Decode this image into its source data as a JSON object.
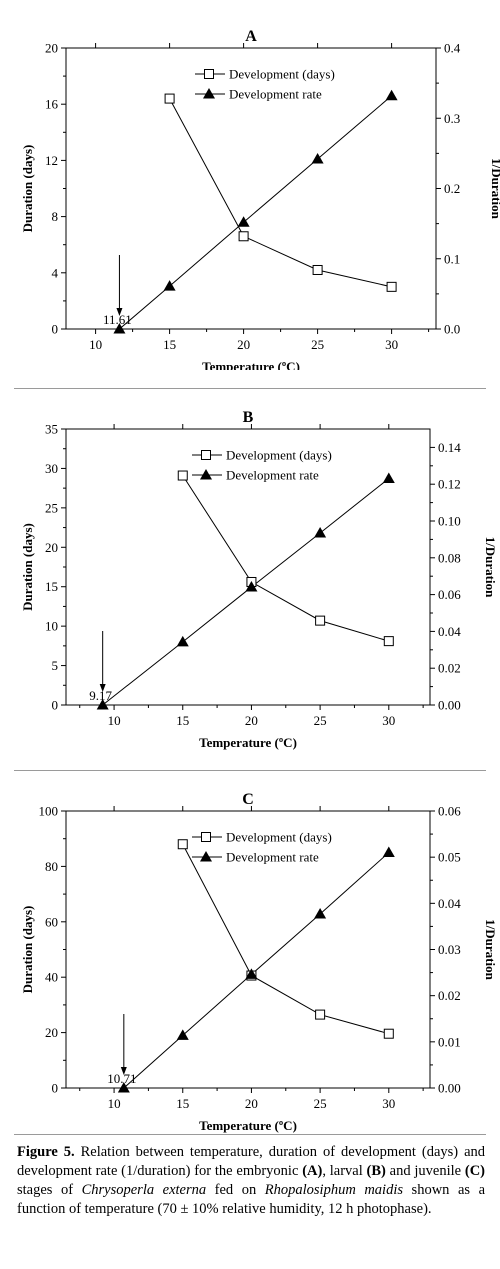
{
  "chart_data": [
    {
      "type": "line",
      "title": "A",
      "xlabel": "Temperature (ºC)",
      "ylabel": "Duration (days)",
      "y2label": "1/Duration",
      "xlim": [
        8,
        33
      ],
      "xticks": [
        10,
        15,
        20,
        25,
        30
      ],
      "ylim": [
        0,
        20
      ],
      "yticks": [
        0,
        4,
        8,
        12,
        16,
        20
      ],
      "ytick_labels": [
        "0",
        "4",
        "8",
        "12",
        "16",
        "20"
      ],
      "y2lim": [
        0,
        0.4
      ],
      "y2ticks": [
        0,
        0.1,
        0.2,
        0.3,
        0.4
      ],
      "y2tick_labels": [
        "0.0",
        "0.1",
        "0.2",
        "0.3",
        "0.4"
      ],
      "series": [
        {
          "name": "Development (days)",
          "axis": "left",
          "marker": "open-square",
          "x": [
            15,
            20,
            25,
            30
          ],
          "y": [
            16.4,
            6.6,
            4.2,
            3.0
          ]
        },
        {
          "name": "Development rate",
          "axis": "right",
          "marker": "filled-triangle",
          "x": [
            11.61,
            15,
            20,
            25,
            30
          ],
          "y": [
            0.0,
            0.061,
            0.152,
            0.242,
            0.332
          ]
        }
      ],
      "annotation": {
        "text": "11.61",
        "x": 11.61
      }
    },
    {
      "type": "line",
      "title": "B",
      "xlabel": "Temperature (ºC)",
      "ylabel": "Duration (days)",
      "y2label": "1/Duration",
      "xlim": [
        6.5,
        33
      ],
      "xticks": [
        10,
        15,
        20,
        25,
        30
      ],
      "ylim": [
        0,
        35
      ],
      "yticks": [
        0,
        5,
        10,
        15,
        20,
        25,
        30,
        35
      ],
      "ytick_labels": [
        "0",
        "5",
        "10",
        "15",
        "20",
        "25",
        "30",
        "35"
      ],
      "y2lim": [
        0,
        0.15
      ],
      "y2ticks": [
        0,
        0.02,
        0.04,
        0.06,
        0.08,
        0.1,
        0.12,
        0.14
      ],
      "y2tick_labels": [
        "0.00",
        "0.02",
        "0.04",
        "0.06",
        "0.08",
        "0.10",
        "0.12",
        "0.14"
      ],
      "series": [
        {
          "name": "Development (days)",
          "axis": "left",
          "marker": "open-square",
          "x": [
            15,
            20,
            25,
            30
          ],
          "y": [
            29.1,
            15.6,
            10.7,
            8.1
          ]
        },
        {
          "name": "Development rate",
          "axis": "right",
          "marker": "filled-triangle",
          "x": [
            9.17,
            15,
            20,
            25,
            30
          ],
          "y": [
            0.0,
            0.0343,
            0.0641,
            0.0935,
            0.1231
          ]
        }
      ],
      "annotation": {
        "text": "9.17",
        "x": 9.17
      }
    },
    {
      "type": "line",
      "title": "C",
      "xlabel": "Temperature (ºC)",
      "ylabel": "Duration (days)",
      "y2label": "1/Duration",
      "xlim": [
        6.5,
        33
      ],
      "xticks": [
        10,
        15,
        20,
        25,
        30
      ],
      "ylim": [
        0,
        100
      ],
      "yticks": [
        0,
        20,
        40,
        60,
        80,
        100
      ],
      "ytick_labels": [
        "0",
        "20",
        "40",
        "60",
        "80",
        "100"
      ],
      "y2lim": [
        0,
        0.06
      ],
      "y2ticks": [
        0,
        0.01,
        0.02,
        0.03,
        0.04,
        0.05,
        0.06
      ],
      "y2tick_labels": [
        "0.00",
        "0.01",
        "0.02",
        "0.03",
        "0.04",
        "0.05",
        "0.06"
      ],
      "series": [
        {
          "name": "Development (days)",
          "axis": "left",
          "marker": "open-square",
          "x": [
            15,
            20,
            25,
            30
          ],
          "y": [
            88.0,
            40.6,
            26.5,
            19.6
          ]
        },
        {
          "name": "Development rate",
          "axis": "right",
          "marker": "filled-triangle",
          "x": [
            10.71,
            15,
            20,
            25,
            30
          ],
          "y": [
            0.0,
            0.0114,
            0.0246,
            0.0377,
            0.051
          ]
        }
      ],
      "annotation": {
        "text": "10.71",
        "x": 10.71
      }
    }
  ],
  "caption": {
    "label": "Figure 5.",
    "t1": " Relation between temperature, duration of development (days) and development rate (1/duration) for the embryonic ",
    "a": "(A)",
    "t2": ", larval ",
    "b": "(B)",
    "t3": " and juvenile ",
    "c": "(C)",
    "t4": " stages of ",
    "species1": "Chrysoperla externa",
    "t5": " fed on ",
    "species2": "Rhopalosiphum maidis",
    "t6": " shown as a function of temperature (70 ± 10% relative humidity, 12 h photophase)."
  }
}
